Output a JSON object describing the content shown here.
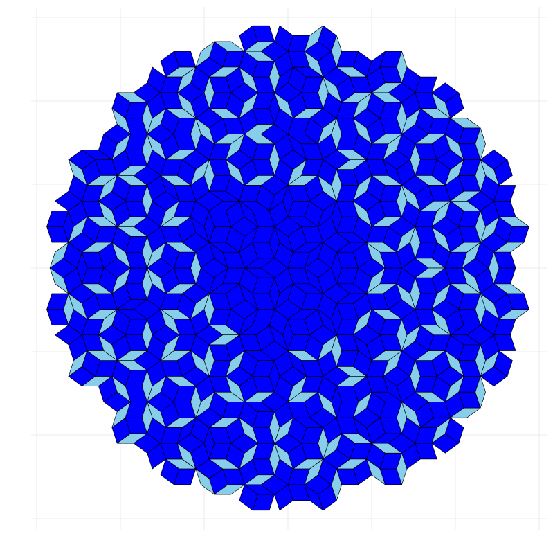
{
  "figure": {
    "title": "",
    "kind": "penrose-rhombus-tiling",
    "shape": "decagon",
    "grid": true,
    "axes_labels": "none",
    "colors": {
      "thick_rhombus": "#0000ff",
      "thin_rhombus": "#87ceeb",
      "edge_stroke": "#000000",
      "gridline": "#ebebeb",
      "background": "#ffffff"
    }
  }
}
